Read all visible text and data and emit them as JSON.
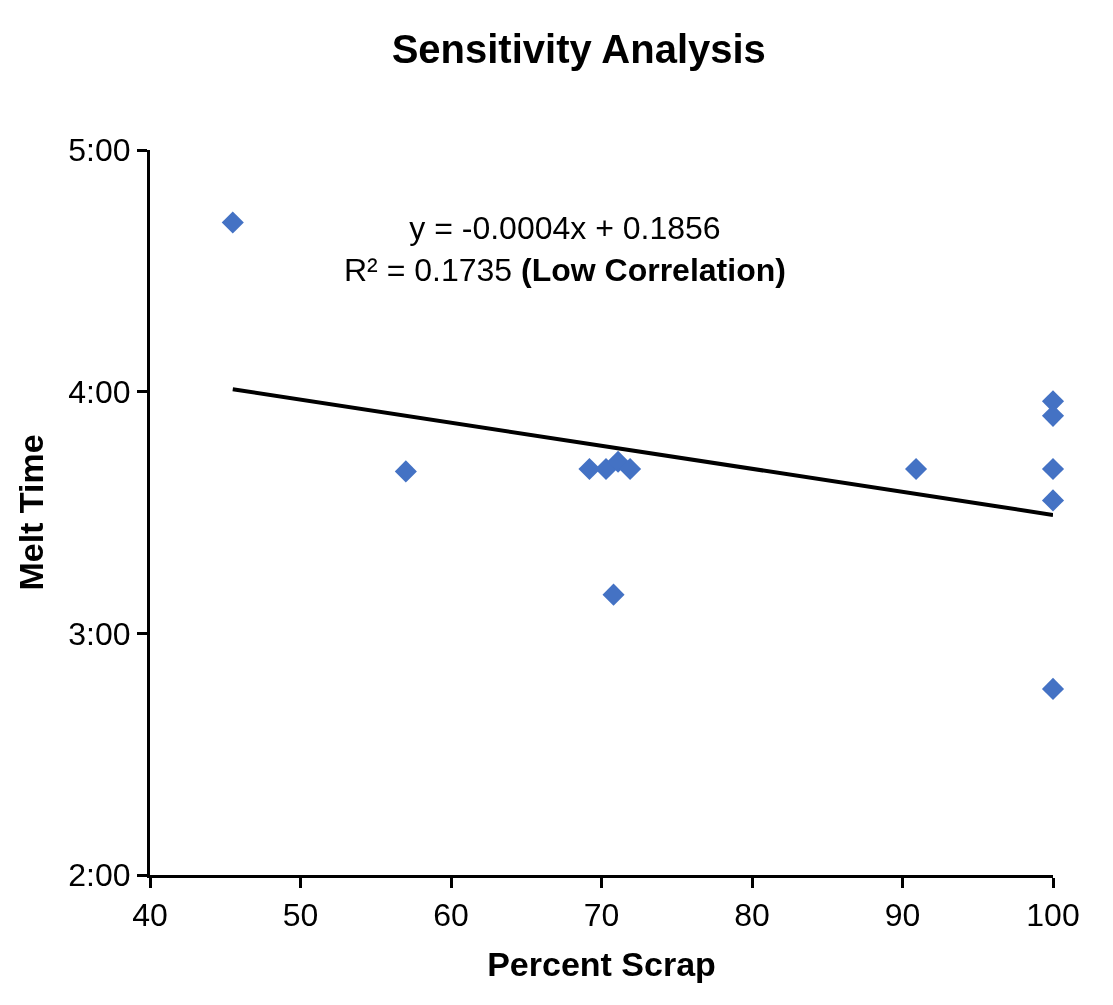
{
  "chart_data": {
    "type": "scatter",
    "title": "Sensitivity Analysis",
    "xlabel": "Percent Scrap",
    "ylabel": "Melt Time",
    "annotations": [
      "y = -0.0004x + 0.1856",
      "R² = 0.1735",
      "(Low Correlation)"
    ],
    "series": [
      {
        "color": "#4472c4",
        "marker": "diamond",
        "x": [
          45.5,
          57,
          69.2,
          70.3,
          71.1,
          71.9,
          70.8,
          90.9,
          100,
          100,
          100,
          100,
          100
        ],
        "values": [
          4.7,
          3.67,
          3.68,
          3.68,
          3.71,
          3.68,
          3.16,
          3.68,
          3.96,
          3.9,
          3.68,
          3.55,
          2.77
        ]
      },
      {
        "type": "line",
        "color": "#000000",
        "marker": "none",
        "line_style": "solid",
        "x": [
          45.5,
          100
        ],
        "values": [
          4.01,
          3.49
        ]
      }
    ],
    "xlim": [
      40,
      100
    ],
    "xticks": [
      40,
      50,
      60,
      70,
      80,
      90,
      100
    ],
    "ylim": [
      2,
      5
    ],
    "yticks": [
      {
        "value": 2,
        "label": "2:00"
      },
      {
        "value": 3,
        "label": "3:00"
      },
      {
        "value": 4,
        "label": "4:00"
      },
      {
        "value": 5,
        "label": "5:00"
      }
    ],
    "legend": false
  }
}
